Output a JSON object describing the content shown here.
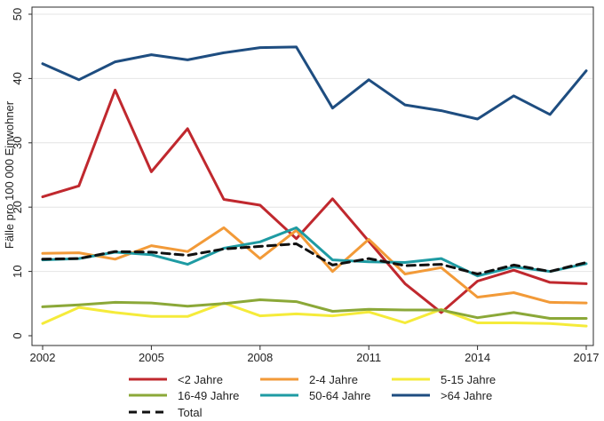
{
  "chart_data": {
    "type": "line",
    "title": "",
    "xlabel": "",
    "ylabel": "Fälle pro 100 000 Einwohner",
    "x": [
      2002,
      2003,
      2004,
      2005,
      2006,
      2007,
      2008,
      2009,
      2010,
      2011,
      2012,
      2013,
      2014,
      2015,
      2016,
      2017
    ],
    "xticks": [
      2002,
      2005,
      2008,
      2011,
      2014,
      2017
    ],
    "yticks": [
      0,
      10,
      20,
      30,
      40,
      50
    ],
    "xlim": [
      2002,
      2017
    ],
    "ylim": [
      0,
      50
    ],
    "grid": "horizontal",
    "legend_position": "bottom",
    "series": [
      {
        "name": "<2 Jahre",
        "color": "#c0282e",
        "dash": false,
        "values": [
          21.6,
          23.3,
          38.2,
          25.5,
          32.2,
          21.2,
          20.3,
          15.1,
          21.3,
          14.7,
          8.1,
          3.6,
          8.5,
          10.2,
          8.3,
          8.1
        ]
      },
      {
        "name": "2-4 Jahre",
        "color": "#f29a38",
        "dash": false,
        "values": [
          12.8,
          12.9,
          11.9,
          14.0,
          13.1,
          16.8,
          12.0,
          16.4,
          10.0,
          15.0,
          9.6,
          10.6,
          6.0,
          6.7,
          5.2,
          5.1
        ]
      },
      {
        "name": "5-15 Jahre",
        "color": "#f5eb3a",
        "dash": false,
        "values": [
          1.9,
          4.4,
          3.6,
          3.0,
          3.0,
          5.1,
          3.1,
          3.4,
          3.1,
          3.7,
          2.0,
          4.1,
          2.0,
          2.0,
          1.9,
          1.5
        ]
      },
      {
        "name": "16-49 Jahre",
        "color": "#8ba838",
        "dash": false,
        "values": [
          4.5,
          4.8,
          5.2,
          5.1,
          4.6,
          5.0,
          5.6,
          5.3,
          3.8,
          4.1,
          4.0,
          4.0,
          2.8,
          3.6,
          2.7,
          2.7
        ]
      },
      {
        "name": "50-64 Jahre",
        "color": "#1e9ba3",
        "dash": false,
        "values": [
          11.8,
          12.0,
          13.0,
          12.6,
          11.1,
          13.6,
          14.6,
          16.8,
          11.8,
          11.5,
          11.4,
          12.0,
          9.3,
          10.7,
          10.0,
          11.2
        ]
      },
      {
        "name": ">64 Jahre",
        "color": "#1e4d80",
        "dash": false,
        "values": [
          42.3,
          39.8,
          42.6,
          43.7,
          42.9,
          44.0,
          44.8,
          44.9,
          35.4,
          39.8,
          35.9,
          35.0,
          33.7,
          37.3,
          34.4,
          41.2
        ]
      },
      {
        "name": "Total",
        "color": "#111111",
        "dash": true,
        "values": [
          11.9,
          12.0,
          13.1,
          13.0,
          12.5,
          13.5,
          13.9,
          14.3,
          11.0,
          12.0,
          10.9,
          11.1,
          9.6,
          11.0,
          10.0,
          11.4
        ]
      }
    ]
  }
}
